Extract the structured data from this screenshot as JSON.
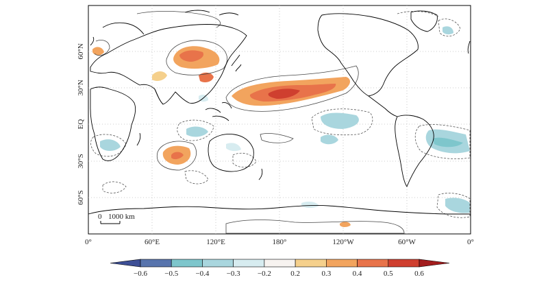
{
  "map": {
    "x_ticks": [
      "0°",
      "60°E",
      "120°E",
      "180°",
      "120°W",
      "60°W",
      "0°"
    ],
    "y_ticks": [
      "60°N",
      "30°N",
      "EQ",
      "30°S",
      "60°S"
    ],
    "scale_bar": {
      "zero": "0",
      "label": "1000 km"
    },
    "colorbar": {
      "levels": [
        "−0.6",
        "−0.5",
        "−0.4",
        "−0.3",
        "−0.2",
        "0.2",
        "0.3",
        "0.4",
        "0.5",
        "0.6"
      ],
      "colors": [
        "#3d4f96",
        "#5874ad",
        "#7ec6cc",
        "#a9d6de",
        "#d7ecf0",
        "#f7f3f0",
        "#f5d08c",
        "#f2a45e",
        "#e8734a",
        "#cf3f2f",
        "#a31d1e"
      ]
    },
    "colors": {
      "land_outline": "#000000",
      "contour_line": "#444444",
      "gridline": "#bbbbbb"
    }
  }
}
